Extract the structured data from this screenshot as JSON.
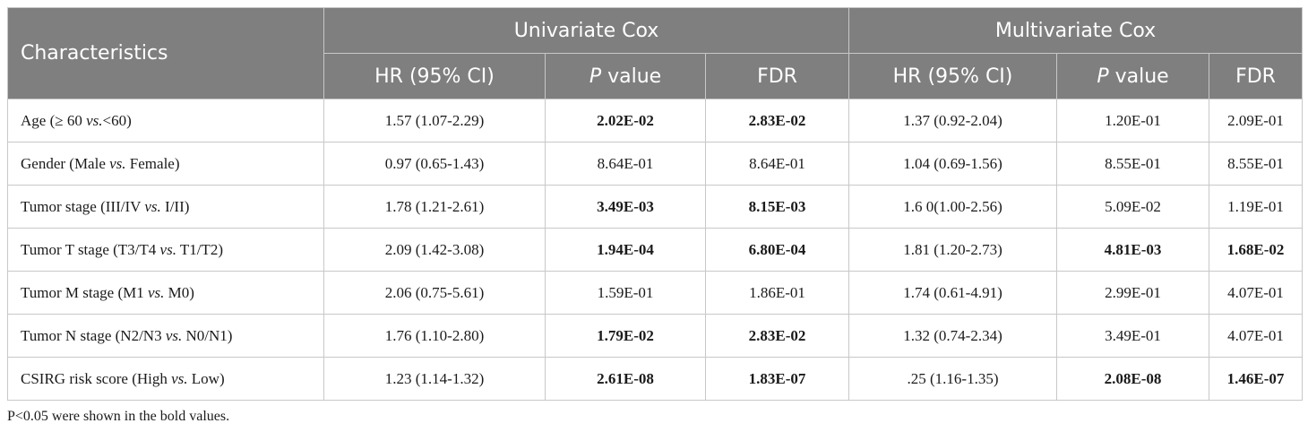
{
  "header": {
    "characteristics": "Characteristics",
    "group_univariate": "Univariate Cox",
    "group_multivariate": "Multivariate Cox",
    "hr": "HR (95% CI)",
    "p_italic": "P",
    "p_rest": " value",
    "fdr": "FDR"
  },
  "rows": [
    {
      "pre": "Age (≥ 60 ",
      "vs": "vs.",
      "post": "<60)",
      "uhr": "1.57 (1.07-2.29)",
      "up": "2.02E-02",
      "ufdr": "2.83E-02",
      "mhr": "1.37 (0.92-2.04)",
      "mp": "1.20E-01",
      "mfdr": "2.09E-01"
    },
    {
      "pre": "Gender (Male ",
      "vs": "vs.",
      "post": " Female)",
      "uhr": "0.97 (0.65-1.43)",
      "up": "8.64E-01",
      "ufdr": "8.64E-01",
      "mhr": "1.04 (0.69-1.56)",
      "mp": "8.55E-01",
      "mfdr": "8.55E-01"
    },
    {
      "pre": "Tumor stage (III/IV ",
      "vs": "vs.",
      "post": " I/II)",
      "uhr": "1.78 (1.21-2.61)",
      "up": "3.49E-03",
      "ufdr": "8.15E-03",
      "mhr": "1.6 0(1.00-2.56)",
      "mp": "5.09E-02",
      "mfdr": "1.19E-01"
    },
    {
      "pre": "Tumor T stage (T3/T4 ",
      "vs": "vs.",
      "post": " T1/T2)",
      "uhr": "2.09 (1.42-3.08)",
      "up": "1.94E-04",
      "ufdr": "6.80E-04",
      "mhr": "1.81 (1.20-2.73)",
      "mp": "4.81E-03",
      "mfdr": "1.68E-02"
    },
    {
      "pre": "Tumor M stage (M1 ",
      "vs": "vs.",
      "post": " M0)",
      "uhr": "2.06 (0.75-5.61)",
      "up": "1.59E-01",
      "ufdr": "1.86E-01",
      "mhr": "1.74 (0.61-4.91)",
      "mp": "2.99E-01",
      "mfdr": "4.07E-01"
    },
    {
      "pre": "Tumor N stage (N2/N3 ",
      "vs": "vs.",
      "post": " N0/N1)",
      "uhr": "1.76 (1.10-2.80)",
      "up": "1.79E-02",
      "ufdr": "2.83E-02",
      "mhr": "1.32 (0.74-2.34)",
      "mp": "3.49E-01",
      "mfdr": "4.07E-01"
    },
    {
      "pre": "CSIRG risk score (High ",
      "vs": "vs.",
      "post": " Low)",
      "uhr": "1.23 (1.14-1.32)",
      "up": "2.61E-08",
      "ufdr": "1.83E-07",
      "mhr": ".25 (1.16-1.35)",
      "mp": "2.08E-08",
      "mfdr": "1.46E-07"
    }
  ],
  "footnote": "P<0.05 were shown in the bold values."
}
